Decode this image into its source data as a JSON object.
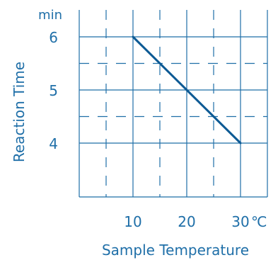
{
  "colors": {
    "accent": "#1f6fa8",
    "line": "#0d5a94",
    "background": "#ffffff"
  },
  "chart_data": {
    "type": "line",
    "title": "",
    "xlabel": "Sample Temperature",
    "ylabel": "Reaction Time",
    "x_unit": "℃",
    "y_unit": "min",
    "xlim": [
      0,
      35
    ],
    "ylim": [
      3,
      6.5
    ],
    "x_ticks": [
      10,
      20,
      30
    ],
    "x_tick_labels": [
      "10",
      "20",
      "30"
    ],
    "y_ticks": [
      4,
      5,
      6
    ],
    "y_tick_labels": [
      "4",
      "5",
      "6"
    ],
    "grid": true,
    "solid_grid_x": [
      10,
      20,
      30,
      35
    ],
    "dashed_grid_x": [
      5,
      15,
      25
    ],
    "solid_grid_y": [
      4,
      5,
      6
    ],
    "dashed_grid_y": [
      4.5,
      5.5
    ],
    "series": [
      {
        "x": [
          10,
          20,
          30
        ],
        "y": [
          6,
          5,
          4
        ]
      }
    ]
  }
}
